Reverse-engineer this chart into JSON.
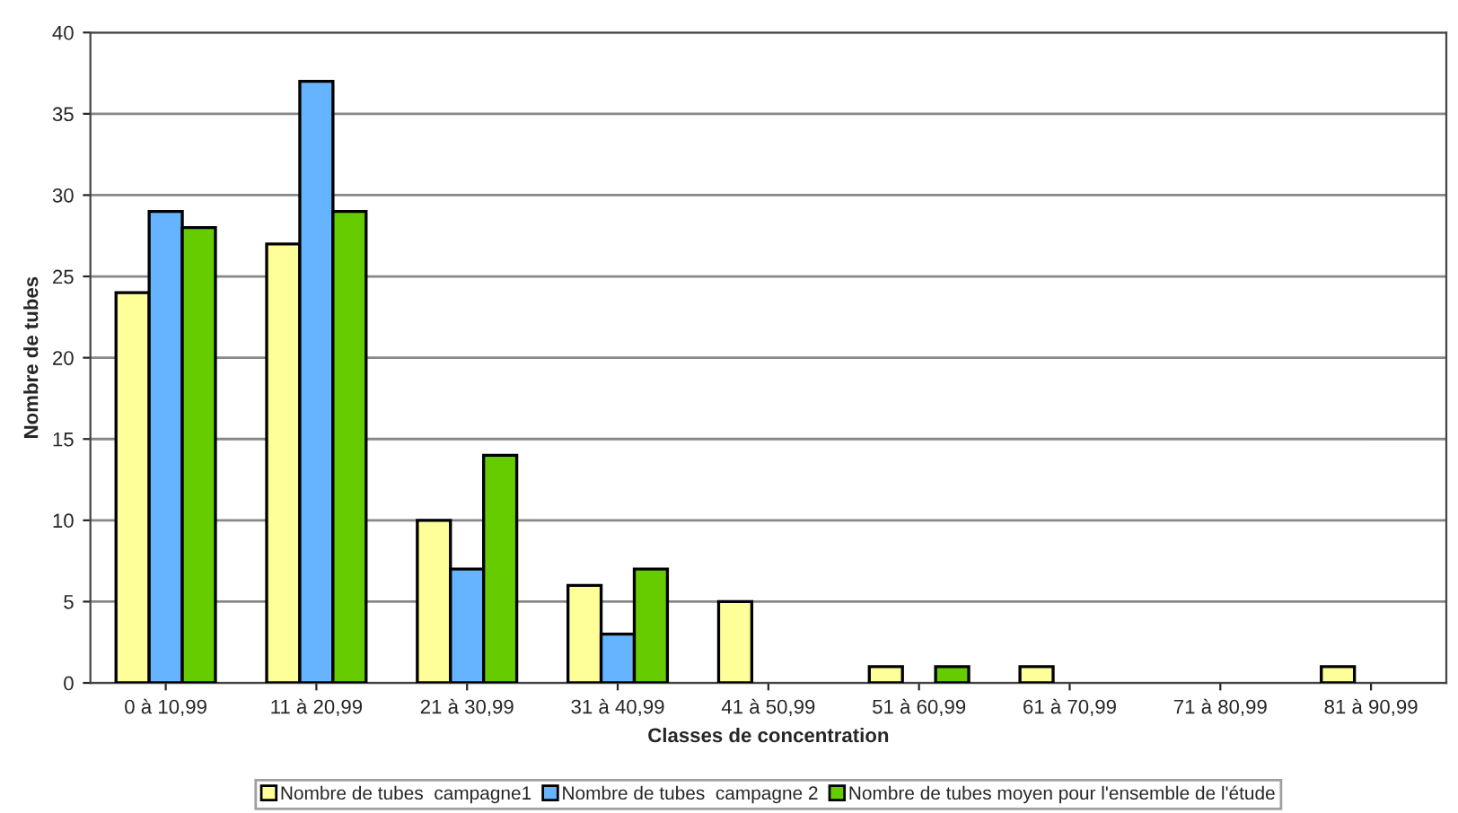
{
  "chart_data": {
    "type": "bar",
    "xlabel": "Classes de concentration",
    "ylabel": "Nombre de tubes",
    "categories": [
      "0 à 10,99",
      "11 à 20,99",
      "21 à 30,99",
      "31 à 40,99",
      "41 à 50,99",
      "51 à 60,99",
      "61 à 70,99",
      "71 à 80,99",
      "81 à 90,99"
    ],
    "series": [
      {
        "name": "Nombre de tubes  campagne1",
        "color": "#ffff99",
        "values": [
          24,
          27,
          10,
          6,
          5,
          1,
          1,
          null,
          1
        ]
      },
      {
        "name": "Nombre de tubes  campagne 2",
        "color": "#66b3ff",
        "values": [
          29,
          37,
          7,
          3,
          null,
          null,
          null,
          null,
          null
        ]
      },
      {
        "name": "Nombre de tubes moyen pour l'ensemble de l'étude",
        "color": "#66cc00",
        "values": [
          28,
          29,
          14,
          7,
          null,
          1,
          null,
          null,
          null
        ]
      }
    ],
    "ylim": [
      0,
      40
    ],
    "yticks": [
      0,
      5,
      10,
      15,
      20,
      25,
      30,
      35,
      40
    ],
    "grid": "y",
    "legend": "bottom"
  }
}
